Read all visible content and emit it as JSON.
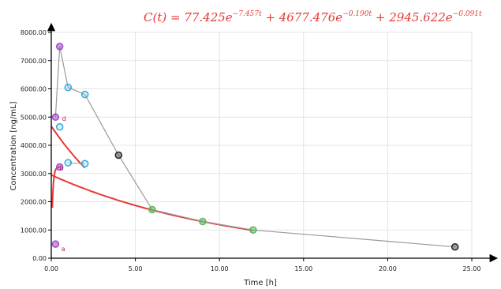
{
  "chart_data": {
    "type": "line",
    "equation": {
      "lhs": "C(t) = 77.425e",
      "exp1": "−7.457t",
      "mid1": " + 4677.476e",
      "exp2": "−0.190t",
      "mid2": " + 2945.622e",
      "exp3": "−0.091t",
      "a_coef": 77.425,
      "alpha": 7.457,
      "b_coef": 4677.476,
      "beta": 0.19,
      "c_coef": 2945.622,
      "gamma": 0.091
    },
    "xlabel": "Time [h]",
    "ylabel": "Concentration [ng/mL]",
    "xlim": [
      0,
      25
    ],
    "ylim": [
      0,
      8000
    ],
    "xticks": [
      0,
      5,
      10,
      15,
      20,
      25
    ],
    "xtick_labels": [
      "0.00",
      "5.00",
      "10.00",
      "15.00",
      "20.00",
      "25.00"
    ],
    "yticks": [
      0,
      1000,
      2000,
      3000,
      4000,
      5000,
      6000,
      7000,
      8000
    ],
    "ytick_labels": [
      "0.00",
      "1000.00",
      "2000.00",
      "3000.00",
      "4000.00",
      "5000.00",
      "6000.00",
      "7000.00",
      "8000.00"
    ],
    "grid": true,
    "observed_series": [
      {
        "x": 0.25,
        "y": 5000,
        "color": "#a349c9"
      },
      {
        "x": 0.5,
        "y": 7500,
        "color": "#a349c9"
      },
      {
        "x": 1,
        "y": 6050,
        "color": "#29abe2"
      },
      {
        "x": 2,
        "y": 5800,
        "color": "#29abe2"
      },
      {
        "x": 4,
        "y": 3650,
        "color": "#222222"
      },
      {
        "x": 6,
        "y": 1720,
        "color": "#5cb85c"
      },
      {
        "x": 9,
        "y": 1300,
        "color": "#5cb85c"
      },
      {
        "x": 12,
        "y": 1000,
        "color": "#5cb85c"
      },
      {
        "x": 24,
        "y": 400,
        "color": "#222222"
      }
    ],
    "component_points": [
      {
        "x": 0.5,
        "y": 4650,
        "color": "#29abe2"
      },
      {
        "x": 1,
        "y": 3380,
        "color": "#29abe2"
      },
      {
        "x": 2,
        "y": 3350,
        "color": "#29abe2"
      },
      {
        "x": 0.5,
        "y": 3230,
        "color": "#a349c9"
      },
      {
        "x": 0.25,
        "y": 500,
        "color": "#a349c9"
      }
    ],
    "point_labels": [
      {
        "text": "d",
        "x": 0.55,
        "y": 4950
      },
      {
        "text": "b",
        "x": 0.4,
        "y": 3200
      },
      {
        "text": "a",
        "x": 0.5,
        "y": 330
      }
    ],
    "series_colors": {
      "fit": "#e53935",
      "observed": "#999999"
    }
  }
}
